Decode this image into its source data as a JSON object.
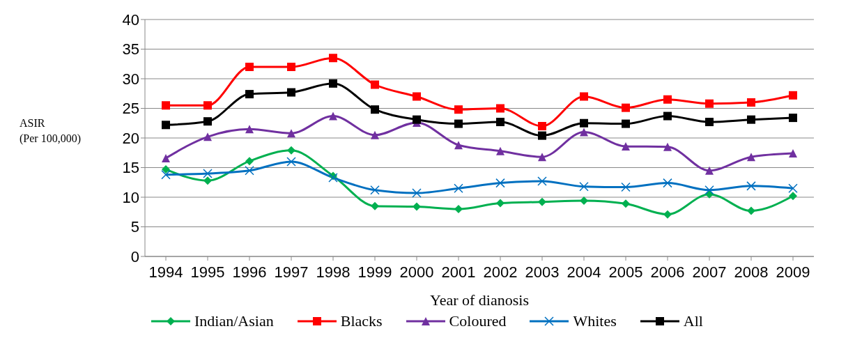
{
  "chart_data": {
    "type": "line",
    "xlabel": "Year of dianosis",
    "ylabel": "ASIR\n(Per 100,000)",
    "categories": [
      "1994",
      "1995",
      "1996",
      "1997",
      "1998",
      "1999",
      "2000",
      "2001",
      "2002",
      "2003",
      "2004",
      "2005",
      "2006",
      "2007",
      "2008",
      "2009"
    ],
    "ylim": [
      0,
      40
    ],
    "yticks": [
      0,
      5,
      10,
      15,
      20,
      25,
      30,
      35,
      40
    ],
    "grid": "y",
    "legend": "bottom",
    "series": [
      {
        "name": "Indian/Asian",
        "color": "#00b050",
        "marker": "diamond",
        "values": [
          14.7,
          12.8,
          16.1,
          17.9,
          13.6,
          8.5,
          8.4,
          8.0,
          9.0,
          9.2,
          9.4,
          8.9,
          7.1,
          10.5,
          7.7,
          10.2
        ]
      },
      {
        "name": "Blacks",
        "color": "#ff0000",
        "marker": "square",
        "values": [
          25.5,
          25.5,
          32,
          32,
          33.5,
          29,
          27,
          24.8,
          25,
          22,
          27,
          25.1,
          26.5,
          25.8,
          26,
          27.2
        ]
      },
      {
        "name": "Coloured",
        "color": "#7030a0",
        "marker": "triangle",
        "values": [
          16.6,
          20.2,
          21.5,
          20.8,
          23.7,
          20.5,
          22.6,
          18.8,
          17.8,
          16.8,
          21.0,
          18.6,
          18.5,
          14.5,
          16.8,
          17.4
        ]
      },
      {
        "name": "Whites",
        "color": "#0070c0",
        "marker": "cross",
        "values": [
          13.8,
          14.0,
          14.5,
          16.0,
          13.3,
          11.2,
          10.7,
          11.5,
          12.4,
          12.7,
          11.8,
          11.7,
          12.4,
          11.2,
          11.9,
          11.5
        ]
      },
      {
        "name": "All",
        "color": "#000000",
        "marker": "square",
        "values": [
          22.2,
          22.8,
          27.4,
          27.7,
          29.2,
          24.8,
          23.1,
          22.4,
          22.7,
          20.4,
          22.5,
          22.4,
          23.7,
          22.7,
          23.1,
          23.4
        ]
      }
    ]
  }
}
